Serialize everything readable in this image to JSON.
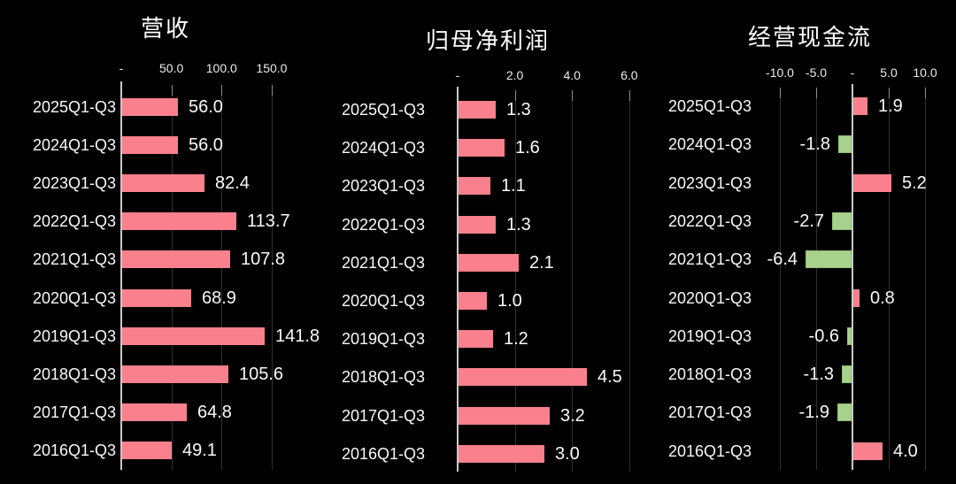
{
  "page": {
    "background": "#000000",
    "text_color": "#fafafa",
    "axis_color": "#c9c9c9",
    "gridline_color": "#313131",
    "positive_bar_color": "#f9808c",
    "negative_bar_color": "#a9d18e",
    "negative_bar_border_color": "#8fbd73"
  },
  "chart_data": [
    {
      "type": "bar",
      "orientation": "horizontal",
      "title": "营收",
      "categories": [
        "2025Q1-Q3",
        "2024Q1-Q3",
        "2023Q1-Q3",
        "2022Q1-Q3",
        "2021Q1-Q3",
        "2020Q1-Q3",
        "2019Q1-Q3",
        "2018Q1-Q3",
        "2017Q1-Q3",
        "2016Q1-Q3"
      ],
      "values": [
        56.0,
        56.0,
        82.4,
        113.7,
        107.8,
        68.9,
        141.8,
        105.6,
        64.8,
        49.1
      ],
      "labels": [
        "56.0",
        "56.0",
        "82.4",
        "113.7",
        "107.8",
        "68.9",
        "141.8",
        "105.6",
        "64.8",
        "49.1"
      ],
      "axis_ticks": [
        {
          "label": "-",
          "value": 0
        },
        {
          "label": "50.0",
          "value": 50
        },
        {
          "label": "100.0",
          "value": 100
        },
        {
          "label": "150.0",
          "value": 150
        }
      ],
      "xlim": [
        0,
        210
      ],
      "grid": true,
      "legend": null
    },
    {
      "type": "bar",
      "orientation": "horizontal",
      "title": "归母净利润",
      "categories": [
        "2025Q1-Q3",
        "2024Q1-Q3",
        "2023Q1-Q3",
        "2022Q1-Q3",
        "2021Q1-Q3",
        "2020Q1-Q3",
        "2019Q1-Q3",
        "2018Q1-Q3",
        "2017Q1-Q3",
        "2016Q1-Q3"
      ],
      "values": [
        1.3,
        1.6,
        1.1,
        1.3,
        2.1,
        1.0,
        1.2,
        4.5,
        3.2,
        3.0
      ],
      "labels": [
        "1.3",
        "1.6",
        "1.1",
        "1.3",
        "2.1",
        "1.0",
        "1.2",
        "4.5",
        "3.2",
        "3.0"
      ],
      "axis_ticks": [
        {
          "label": "-",
          "value": 0
        },
        {
          "label": "2.0",
          "value": 2
        },
        {
          "label": "4.0",
          "value": 4
        },
        {
          "label": "6.0",
          "value": 6
        }
      ],
      "xlim": [
        0,
        6.6
      ],
      "grid": true,
      "legend": null
    },
    {
      "type": "bar",
      "orientation": "horizontal",
      "title": "经营现金流",
      "categories": [
        "2025Q1-Q3",
        "2024Q1-Q3",
        "2023Q1-Q3",
        "2022Q1-Q3",
        "2021Q1-Q3",
        "2020Q1-Q3",
        "2019Q1-Q3",
        "2018Q1-Q3",
        "2017Q1-Q3",
        "2016Q1-Q3"
      ],
      "values": [
        1.9,
        -1.8,
        5.2,
        -2.7,
        -6.4,
        0.8,
        -0.6,
        -1.3,
        -1.9,
        4.0
      ],
      "labels": [
        "1.9",
        "-1.8",
        "5.2",
        "-2.7",
        "-6.4",
        "0.8",
        "-0.6",
        "-1.3",
        "-1.9",
        "4.0"
      ],
      "axis_ticks": [
        {
          "label": "-10.0",
          "value": -10
        },
        {
          "label": "-5.0",
          "value": -5
        },
        {
          "label": "-",
          "value": 0
        },
        {
          "label": "5.0",
          "value": 5
        },
        {
          "label": "10.0",
          "value": 10
        }
      ],
      "xlim": [
        -12,
        12
      ],
      "grid": true,
      "legend": null
    }
  ]
}
